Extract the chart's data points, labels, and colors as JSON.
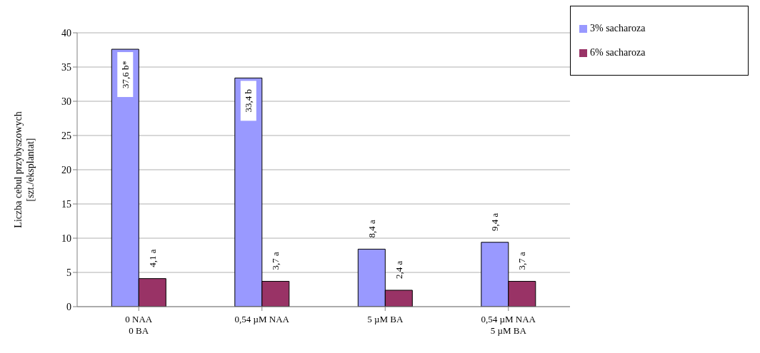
{
  "chart_data": {
    "type": "bar",
    "ylabel": "Liczba cebul przybyszowych\n[szt./eksplantat]",
    "categories": [
      "0 NAA\n0 BA",
      "0,54 µM NAA",
      "5 µM BA",
      "0,54 µM NAA\n5 µM BA"
    ],
    "series": [
      {
        "name": "3% sacharoza",
        "color": "#9999ff",
        "values": [
          37.6,
          33.4,
          8.4,
          9.4
        ],
        "value_labels": [
          "37,6 b*",
          "33,4 b",
          "8,4 a",
          "9,4 a"
        ]
      },
      {
        "name": "6% sacharoza",
        "color": "#993366",
        "values": [
          4.1,
          3.7,
          2.4,
          3.7
        ],
        "value_labels": [
          "4,1 a",
          "3,7 a",
          "2,4 a",
          "3,7 a"
        ]
      }
    ],
    "ylim": [
      0,
      40
    ],
    "yticks": [
      0,
      5,
      10,
      15,
      20,
      25,
      30,
      35,
      40
    ],
    "grid": "y",
    "legend": "top right"
  }
}
